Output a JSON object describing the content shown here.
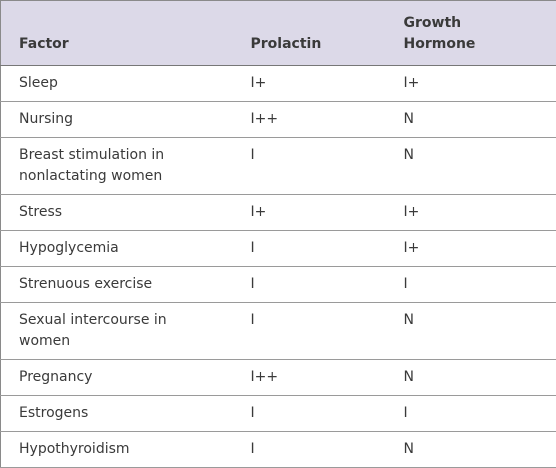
{
  "table": {
    "header": [
      "Factor",
      "Prolactin",
      "Growth Hormone"
    ],
    "rows": [
      [
        "Sleep",
        "I+",
        "I+"
      ],
      [
        "Nursing",
        "I++",
        "N"
      ],
      [
        "Breast stimulation in nonlactating women",
        "I",
        "N"
      ],
      [
        "Stress",
        "I+",
        "I+"
      ],
      [
        "Hypoglycemia",
        "I",
        "I+"
      ],
      [
        "Strenuous exercise",
        "I",
        "I"
      ],
      [
        "Sexual intercourse in women",
        "I",
        "N"
      ],
      [
        "Pregnancy",
        "I++",
        "N"
      ],
      [
        "Estrogens",
        "I",
        "I"
      ],
      [
        "Hypothyroidism",
        "I",
        "N"
      ]
    ]
  }
}
